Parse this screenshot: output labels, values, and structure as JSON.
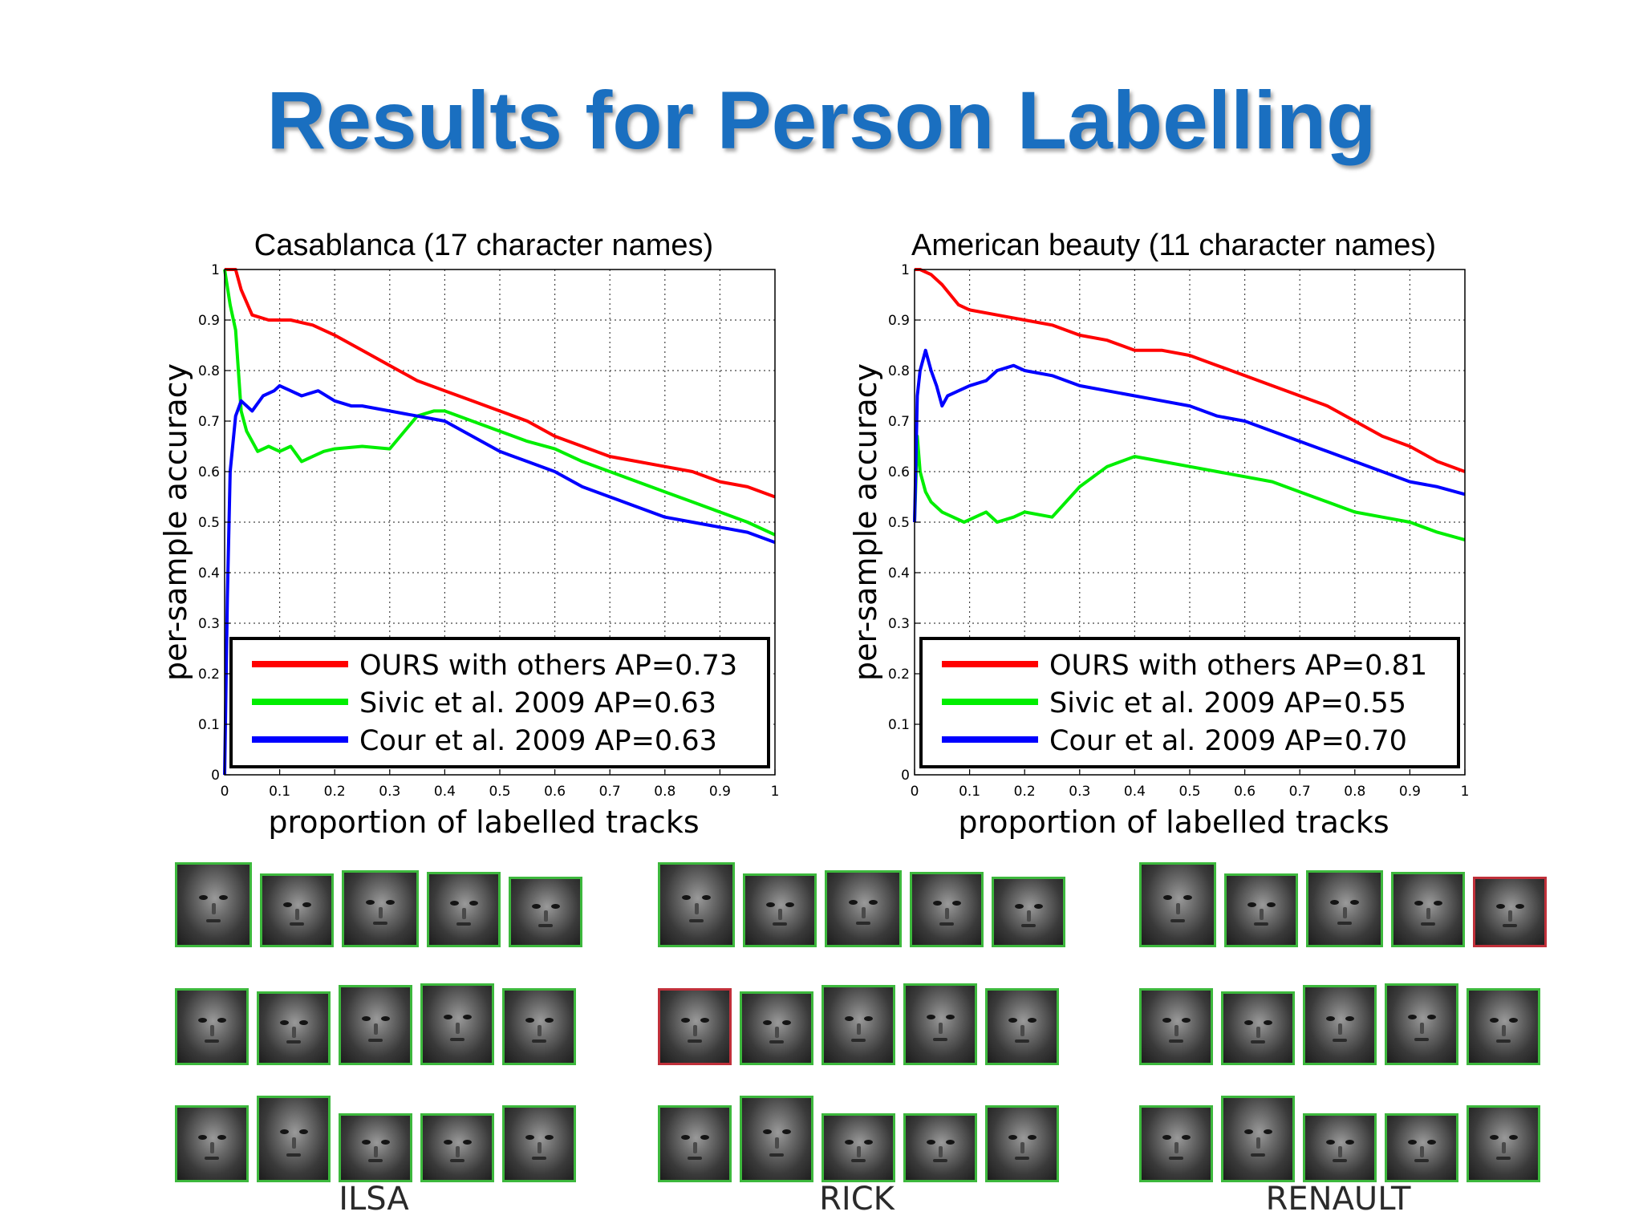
{
  "slide": {
    "title": "Results for Person Labelling"
  },
  "chart_data": [
    {
      "type": "line",
      "title": "Casablanca (17 character names)",
      "xlabel": "proportion of labelled tracks",
      "ylabel": "per-sample accuracy",
      "xlim": [
        0,
        1
      ],
      "ylim": [
        0,
        1
      ],
      "xticks": [
        "0",
        "0.1",
        "0.2",
        "0.3",
        "0.4",
        "0.5",
        "0.6",
        "0.7",
        "0.8",
        "0.9",
        "1"
      ],
      "yticks": [
        "0",
        "0.1",
        "0.2",
        "0.3",
        "0.4",
        "0.5",
        "0.6",
        "0.7",
        "0.8",
        "0.9",
        "1"
      ],
      "grid": true,
      "legend_position": "bottom",
      "series": [
        {
          "name": "OURS with others AP=0.73",
          "color": "#ff0000",
          "x": [
            0,
            0.02,
            0.03,
            0.05,
            0.08,
            0.12,
            0.16,
            0.2,
            0.25,
            0.3,
            0.35,
            0.4,
            0.45,
            0.5,
            0.55,
            0.6,
            0.65,
            0.7,
            0.75,
            0.8,
            0.85,
            0.9,
            0.95,
            1.0
          ],
          "y": [
            1.0,
            1.0,
            0.96,
            0.91,
            0.9,
            0.9,
            0.89,
            0.87,
            0.84,
            0.81,
            0.78,
            0.76,
            0.74,
            0.72,
            0.7,
            0.67,
            0.65,
            0.63,
            0.62,
            0.61,
            0.6,
            0.58,
            0.57,
            0.55
          ]
        },
        {
          "name": "Sivic et al. 2009 AP=0.63",
          "color": "#00ee00",
          "x": [
            0,
            0.01,
            0.02,
            0.03,
            0.04,
            0.06,
            0.08,
            0.1,
            0.12,
            0.14,
            0.16,
            0.18,
            0.2,
            0.25,
            0.3,
            0.35,
            0.38,
            0.4,
            0.45,
            0.5,
            0.55,
            0.6,
            0.65,
            0.7,
            0.75,
            0.8,
            0.85,
            0.9,
            0.95,
            1.0
          ],
          "y": [
            1.0,
            0.93,
            0.88,
            0.72,
            0.68,
            0.64,
            0.65,
            0.64,
            0.65,
            0.62,
            0.63,
            0.64,
            0.645,
            0.65,
            0.645,
            0.71,
            0.72,
            0.72,
            0.7,
            0.68,
            0.66,
            0.645,
            0.62,
            0.6,
            0.58,
            0.56,
            0.54,
            0.52,
            0.5,
            0.475
          ]
        },
        {
          "name": "Cour et al. 2009 AP=0.63",
          "color": "#0000ff",
          "x": [
            0,
            0.005,
            0.01,
            0.02,
            0.03,
            0.05,
            0.07,
            0.09,
            0.1,
            0.12,
            0.14,
            0.17,
            0.2,
            0.23,
            0.25,
            0.3,
            0.35,
            0.4,
            0.45,
            0.5,
            0.55,
            0.6,
            0.65,
            0.7,
            0.75,
            0.8,
            0.85,
            0.9,
            0.95,
            1.0
          ],
          "y": [
            0,
            0.35,
            0.6,
            0.71,
            0.74,
            0.72,
            0.75,
            0.76,
            0.77,
            0.76,
            0.75,
            0.76,
            0.74,
            0.73,
            0.73,
            0.72,
            0.71,
            0.7,
            0.67,
            0.64,
            0.62,
            0.6,
            0.57,
            0.55,
            0.53,
            0.51,
            0.5,
            0.49,
            0.48,
            0.46
          ]
        }
      ]
    },
    {
      "type": "line",
      "title": "American beauty (11 character names)",
      "xlabel": "proportion of labelled tracks",
      "ylabel": "per-sample accuracy",
      "xlim": [
        0,
        1
      ],
      "ylim": [
        0,
        1
      ],
      "xticks": [
        "0",
        "0.1",
        "0.2",
        "0.3",
        "0.4",
        "0.5",
        "0.6",
        "0.7",
        "0.8",
        "0.9",
        "1"
      ],
      "yticks": [
        "0",
        "0.1",
        "0.2",
        "0.3",
        "0.4",
        "0.5",
        "0.6",
        "0.7",
        "0.8",
        "0.9",
        "1"
      ],
      "grid": true,
      "legend_position": "bottom",
      "series": [
        {
          "name": "OURS with others AP=0.81",
          "color": "#ff0000",
          "x": [
            0,
            0.01,
            0.03,
            0.05,
            0.08,
            0.1,
            0.15,
            0.2,
            0.25,
            0.3,
            0.35,
            0.4,
            0.45,
            0.5,
            0.55,
            0.6,
            0.65,
            0.7,
            0.75,
            0.8,
            0.85,
            0.9,
            0.95,
            1.0
          ],
          "y": [
            1.0,
            1.0,
            0.99,
            0.97,
            0.93,
            0.92,
            0.91,
            0.9,
            0.89,
            0.87,
            0.86,
            0.84,
            0.84,
            0.83,
            0.81,
            0.79,
            0.77,
            0.75,
            0.73,
            0.7,
            0.67,
            0.65,
            0.62,
            0.6
          ]
        },
        {
          "name": "Sivic et al. 2009 AP=0.55",
          "color": "#00ee00",
          "x": [
            0,
            0.005,
            0.01,
            0.02,
            0.03,
            0.05,
            0.07,
            0.09,
            0.11,
            0.13,
            0.15,
            0.18,
            0.2,
            0.25,
            0.3,
            0.35,
            0.4,
            0.45,
            0.5,
            0.55,
            0.6,
            0.65,
            0.7,
            0.75,
            0.8,
            0.85,
            0.9,
            0.95,
            1.0
          ],
          "y": [
            0.5,
            0.67,
            0.6,
            0.56,
            0.54,
            0.52,
            0.51,
            0.5,
            0.51,
            0.52,
            0.5,
            0.51,
            0.52,
            0.51,
            0.57,
            0.61,
            0.63,
            0.62,
            0.61,
            0.6,
            0.59,
            0.58,
            0.56,
            0.54,
            0.52,
            0.51,
            0.5,
            0.48,
            0.465
          ]
        },
        {
          "name": "Cour et al. 2009 AP=0.70",
          "color": "#0000ff",
          "x": [
            0,
            0.005,
            0.01,
            0.02,
            0.03,
            0.04,
            0.05,
            0.06,
            0.08,
            0.1,
            0.13,
            0.15,
            0.18,
            0.2,
            0.25,
            0.3,
            0.35,
            0.4,
            0.45,
            0.5,
            0.55,
            0.6,
            0.65,
            0.7,
            0.75,
            0.8,
            0.85,
            0.9,
            0.95,
            1.0
          ],
          "y": [
            0.5,
            0.75,
            0.8,
            0.84,
            0.8,
            0.77,
            0.73,
            0.75,
            0.76,
            0.77,
            0.78,
            0.8,
            0.81,
            0.8,
            0.79,
            0.77,
            0.76,
            0.75,
            0.74,
            0.73,
            0.71,
            0.7,
            0.68,
            0.66,
            0.64,
            0.62,
            0.6,
            0.58,
            0.57,
            0.555
          ]
        }
      ]
    }
  ],
  "face_groups": [
    {
      "label": "ILSA",
      "rows": [
        [
          true,
          true,
          true,
          true,
          true
        ],
        [
          true,
          true,
          true,
          true,
          true
        ],
        [
          true,
          true,
          true,
          true,
          true
        ]
      ]
    },
    {
      "label": "RICK",
      "rows": [
        [
          true,
          true,
          true,
          true,
          true
        ],
        [
          false,
          true,
          true,
          true,
          true
        ],
        [
          true,
          true,
          true,
          true,
          true
        ]
      ]
    },
    {
      "label": "RENAULT",
      "rows": [
        [
          true,
          true,
          true,
          true,
          false
        ],
        [
          true,
          true,
          true,
          true,
          true
        ],
        [
          true,
          true,
          true,
          true,
          true
        ]
      ]
    }
  ]
}
